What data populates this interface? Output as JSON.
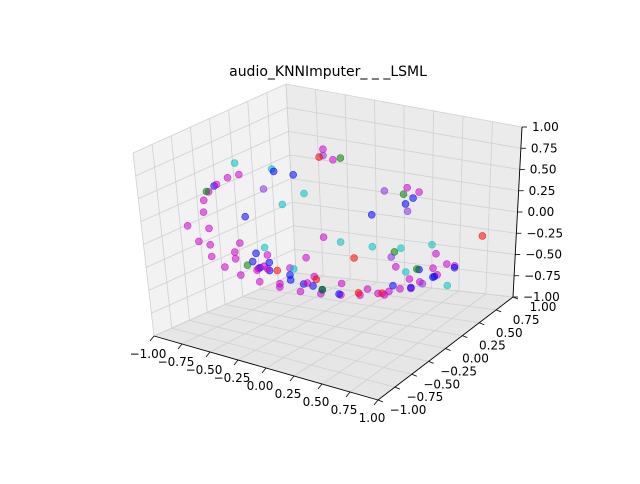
{
  "chart_data": {
    "type": "scatter",
    "projection": "3d",
    "title": "audio_KNNImputer_ _ _LSML",
    "xlabel": "",
    "ylabel": "",
    "zlabel": "",
    "xlim": [
      -1.0,
      1.0
    ],
    "ylim": [
      -1.0,
      1.0
    ],
    "zlim": [
      -1.0,
      1.0
    ],
    "grid": true,
    "pane_color": "#f2f2f2",
    "grid_color": "#d0d0d0",
    "xticks": [
      -1.0,
      -0.75,
      -0.5,
      -0.25,
      0.0,
      0.25,
      0.5,
      0.75,
      1.0
    ],
    "xtick_labels": [
      "−1.00",
      "−0.75",
      "−0.50",
      "−0.25",
      "0.00",
      "0.25",
      "0.50",
      "0.75",
      "1.00"
    ],
    "yticks": [
      -1.0,
      -0.75,
      -0.5,
      -0.25,
      0.0,
      0.25,
      0.5,
      0.75,
      1.0
    ],
    "ytick_labels": [
      "−1.00",
      "−0.75",
      "−0.50",
      "−0.25",
      "0.00",
      "0.25",
      "0.50",
      "0.75",
      "1.00"
    ],
    "zticks": [
      -1.0,
      -0.75,
      -0.5,
      -0.25,
      0.0,
      0.25,
      0.5,
      0.75,
      1.0
    ],
    "ztick_labels": [
      "−1.00",
      "−0.75",
      "−0.50",
      "−0.25",
      "0.00",
      "0.25",
      "0.50",
      "0.75",
      "1.00"
    ],
    "colors": {
      "magenta": "#cc00cc",
      "blue": "#0000ff",
      "cyan": "#00bfbf",
      "green": "#008000",
      "red": "#ff0000",
      "purple": "#8a2be2"
    },
    "series": [
      {
        "color": "magenta",
        "points": [
          [
            -0.92,
            -0.52,
            0.05
          ],
          [
            -0.9,
            -0.42,
            -0.15
          ],
          [
            -0.88,
            -0.3,
            -0.35
          ],
          [
            -0.85,
            -0.18,
            -0.5
          ],
          [
            -0.8,
            -0.05,
            -0.62
          ],
          [
            -0.72,
            0.08,
            -0.72
          ],
          [
            -0.62,
            0.2,
            -0.8
          ],
          [
            -0.5,
            0.3,
            -0.86
          ],
          [
            -0.38,
            0.4,
            -0.9
          ],
          [
            -0.25,
            0.48,
            -0.92
          ],
          [
            -0.12,
            0.55,
            -0.93
          ],
          [
            0.0,
            0.62,
            -0.92
          ],
          [
            0.15,
            0.7,
            -0.88
          ],
          [
            0.28,
            0.78,
            -0.82
          ],
          [
            0.4,
            0.84,
            -0.75
          ],
          [
            0.52,
            0.9,
            -0.66
          ],
          [
            -0.78,
            -0.5,
            0.22
          ],
          [
            -0.7,
            -0.6,
            0.4
          ],
          [
            -0.58,
            -0.7,
            0.55
          ],
          [
            -0.45,
            -0.78,
            0.68
          ],
          [
            -0.3,
            -0.85,
            0.8
          ],
          [
            -0.15,
            -0.92,
            0.88
          ],
          [
            -0.95,
            -0.2,
            -0.1
          ],
          [
            -0.82,
            0.0,
            -0.3
          ],
          [
            -0.68,
            0.15,
            -0.45
          ],
          [
            -0.55,
            0.25,
            -0.6
          ],
          [
            -0.4,
            0.35,
            -0.7
          ],
          [
            -0.22,
            0.45,
            -0.78
          ],
          [
            -0.05,
            0.55,
            -0.85
          ],
          [
            0.1,
            0.62,
            -0.88
          ],
          [
            0.25,
            0.7,
            -0.86
          ],
          [
            -0.6,
            -0.4,
            -0.2
          ],
          [
            -0.48,
            -0.3,
            -0.4
          ],
          [
            -0.35,
            -0.2,
            -0.55
          ],
          [
            -0.62,
            0.05,
            -0.55
          ],
          [
            -0.75,
            0.12,
            -0.6
          ],
          [
            0.1,
            -0.2,
            0.95
          ],
          [
            0.25,
            -0.3,
            0.9
          ],
          [
            0.55,
            0.2,
            0.5
          ],
          [
            0.62,
            0.25,
            0.45
          ],
          [
            0.45,
            0.7,
            -0.6
          ],
          [
            0.3,
            0.6,
            -0.7
          ],
          [
            -0.2,
            -0.05,
            -0.3
          ],
          [
            -0.1,
            0.05,
            -0.1
          ],
          [
            0.05,
            0.8,
            -0.7
          ],
          [
            0.35,
            0.9,
            -0.55
          ],
          [
            -0.85,
            -0.35,
            -0.2
          ],
          [
            -0.7,
            -0.25,
            -0.35
          ],
          [
            -0.55,
            -0.1,
            -0.45
          ],
          [
            0.2,
            0.4,
            -0.8
          ],
          [
            0.48,
            0.85,
            -0.62
          ],
          [
            -0.3,
            0.1,
            -0.65
          ]
        ]
      },
      {
        "color": "blue",
        "points": [
          [
            -0.7,
            -0.45,
            0.5
          ],
          [
            -0.55,
            -0.3,
            0.15
          ],
          [
            -0.5,
            -0.1,
            -0.4
          ],
          [
            -0.62,
            -0.05,
            -0.5
          ],
          [
            -0.45,
            0.1,
            -0.65
          ],
          [
            -0.4,
            0.2,
            -0.72
          ],
          [
            -0.3,
            0.3,
            -0.8
          ],
          [
            -0.2,
            0.38,
            -0.86
          ],
          [
            0.25,
            0.7,
            -0.85
          ],
          [
            0.4,
            0.8,
            -0.75
          ],
          [
            0.55,
            0.85,
            -0.65
          ],
          [
            0.6,
            0.2,
            0.4
          ],
          [
            0.5,
            0.25,
            0.3
          ],
          [
            -0.1,
            -0.55,
            0.8
          ],
          [
            0.0,
            -0.45,
            0.75
          ],
          [
            -0.75,
            0.05,
            -0.5
          ],
          [
            -0.65,
            0.12,
            -0.6
          ],
          [
            -0.35,
            0.25,
            -0.75
          ],
          [
            0.15,
            0.6,
            -0.8
          ],
          [
            0.45,
            0.7,
            -0.7
          ],
          [
            -0.52,
            0.2,
            -0.65
          ],
          [
            -0.58,
            -0.15,
            -0.3
          ],
          [
            0.3,
            0.1,
            0.2
          ],
          [
            0.42,
            0.55,
            -0.55
          ]
        ]
      },
      {
        "color": "cyan",
        "points": [
          [
            -0.4,
            -0.6,
            0.85
          ],
          [
            -0.15,
            -0.5,
            0.8
          ],
          [
            0.05,
            -0.4,
            0.55
          ],
          [
            -0.35,
            -0.1,
            0.25
          ],
          [
            -0.6,
            0.0,
            -0.3
          ],
          [
            0.55,
            0.1,
            -0.1
          ],
          [
            0.1,
            0.4,
            -0.3
          ],
          [
            0.55,
            0.75,
            -0.8
          ],
          [
            -0.05,
            0.2,
            -0.2
          ],
          [
            0.3,
            0.55,
            -0.6
          ],
          [
            -0.45,
            0.15,
            -0.55
          ],
          [
            0.6,
            0.45,
            -0.2
          ]
        ]
      },
      {
        "color": "green",
        "points": [
          [
            -0.6,
            -0.7,
            0.55
          ],
          [
            0.35,
            -0.35,
            0.95
          ],
          [
            0.55,
            0.15,
            0.45
          ],
          [
            -0.8,
            0.05,
            -0.55
          ],
          [
            -0.3,
            0.3,
            -0.8
          ],
          [
            0.2,
            0.55,
            -0.4
          ],
          [
            0.4,
            0.55,
            -0.55
          ]
        ]
      },
      {
        "color": "red",
        "points": [
          [
            0.95,
            0.6,
            -0.1
          ],
          [
            0.2,
            -0.4,
            0.95
          ],
          [
            -0.1,
            0.5,
            -0.88
          ],
          [
            -0.6,
            0.15,
            -0.6
          ],
          [
            -0.35,
            0.3,
            -0.7
          ],
          [
            0.0,
            0.3,
            -0.4
          ],
          [
            0.05,
            0.6,
            -0.9
          ]
        ]
      },
      {
        "color": "purple",
        "points": [
          [
            0.2,
            -0.35,
            0.95
          ],
          [
            0.45,
            0.05,
            0.5
          ],
          [
            0.55,
            0.2,
            0.25
          ],
          [
            0.45,
            0.55,
            -0.7
          ],
          [
            -0.2,
            -0.55,
            0.6
          ],
          [
            0.3,
            0.35,
            -0.35
          ]
        ]
      }
    ]
  }
}
